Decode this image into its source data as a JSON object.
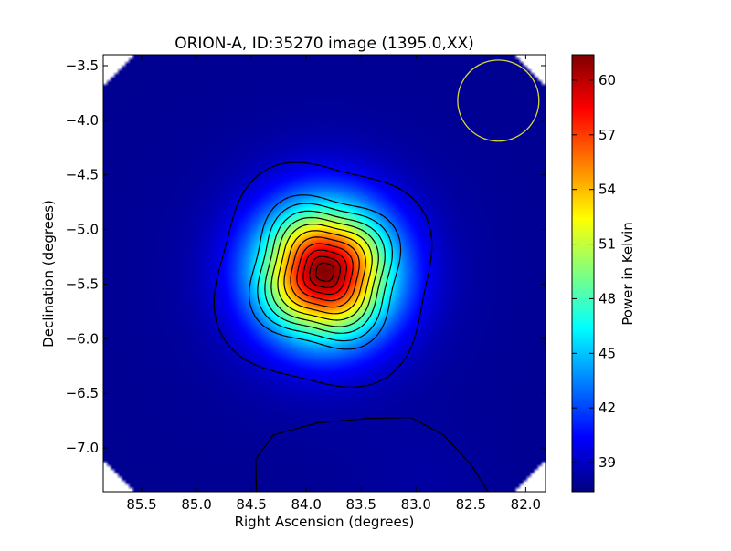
{
  "chart_data": {
    "type": "heatmap",
    "title": "ORION-A, ID:35270 image (1395.0,XX)",
    "xlabel": "Right Ascension (degrees)",
    "ylabel": "Declination (degrees)",
    "colorbar_label": "Power in Kelvin",
    "colormap": "jet",
    "x_inverted": true,
    "xlim": [
      85.85,
      81.82
    ],
    "ylim": [
      -7.4,
      -3.4
    ],
    "x_ticks": [
      85.5,
      85.0,
      84.5,
      84.0,
      83.5,
      83.0,
      82.5,
      82.0
    ],
    "x_tick_labels": [
      "85.5",
      "85.0",
      "84.5",
      "84.0",
      "83.5",
      "83.0",
      "82.5",
      "82.0"
    ],
    "y_ticks": [
      -3.5,
      -4.0,
      -4.5,
      -5.0,
      -5.5,
      -6.0,
      -6.5,
      -7.0
    ],
    "y_tick_labels": [
      "−3.5",
      "−4.0",
      "−4.5",
      "−5.0",
      "−5.5",
      "−6.0",
      "−6.5",
      "−7.0"
    ],
    "colorbar_range": [
      37.4,
      61.4
    ],
    "colorbar_ticks": [
      39,
      42,
      45,
      48,
      51,
      54,
      57,
      60
    ],
    "colorbar_tick_labels": [
      "39",
      "42",
      "45",
      "48",
      "51",
      "54",
      "57",
      "60"
    ],
    "peak": {
      "ra": 83.83,
      "dec": -5.39,
      "value": 61.0
    },
    "background_level": 37.8,
    "beam_circle": {
      "ra": 82.25,
      "dec": -3.82,
      "radius_deg": 0.37,
      "color": "#d6d638"
    },
    "contour_color": "#000000"
  }
}
